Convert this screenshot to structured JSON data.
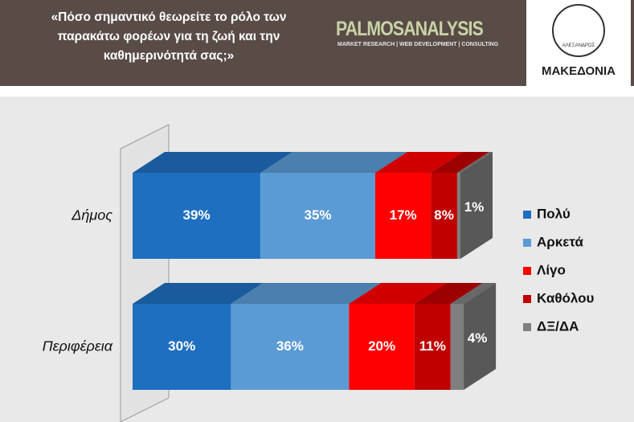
{
  "header": {
    "title": "«Πόσο σημαντικό θεωρείτε το ρόλο των παρακάτω φορέων για τη ζωή και την καθημερινότητά σας;»",
    "logo": "PALMOSANALYSIS",
    "logo_tagline": "MARKET RESEARCH | WEB DEVELOPMENT | CONSULTING",
    "coin_text": "ΑΛΕΞΑΝΔΡΟΣ",
    "brand": "ΜΑΚΕΔΟΝΙΑ"
  },
  "chart_data": {
    "type": "stacked-bar-horizontal",
    "categories": [
      "Δήμος",
      "Περιφέρεια"
    ],
    "xlim": [
      0,
      100
    ],
    "series": [
      {
        "name": "Πολύ",
        "color": "#1f6fc0",
        "values": [
          39,
          30
        ],
        "value_labels": [
          "39%",
          "30%"
        ]
      },
      {
        "name": "Αρκετά",
        "color": "#5b9bd5",
        "values": [
          35,
          36
        ],
        "value_labels": [
          "35%",
          "36%"
        ]
      },
      {
        "name": "Λίγο",
        "color": "#ff0000",
        "values": [
          17,
          20
        ],
        "value_labels": [
          "17%",
          "20%"
        ]
      },
      {
        "name": "Καθόλου",
        "color": "#c00000",
        "values": [
          8,
          11
        ],
        "value_labels": [
          "8%",
          "11%"
        ]
      },
      {
        "name": "ΔΞ/ΔΑ",
        "color": "#7f7f7f",
        "values": [
          1,
          4
        ],
        "value_labels": [
          "1%",
          "4%"
        ]
      }
    ],
    "legend": "right"
  }
}
